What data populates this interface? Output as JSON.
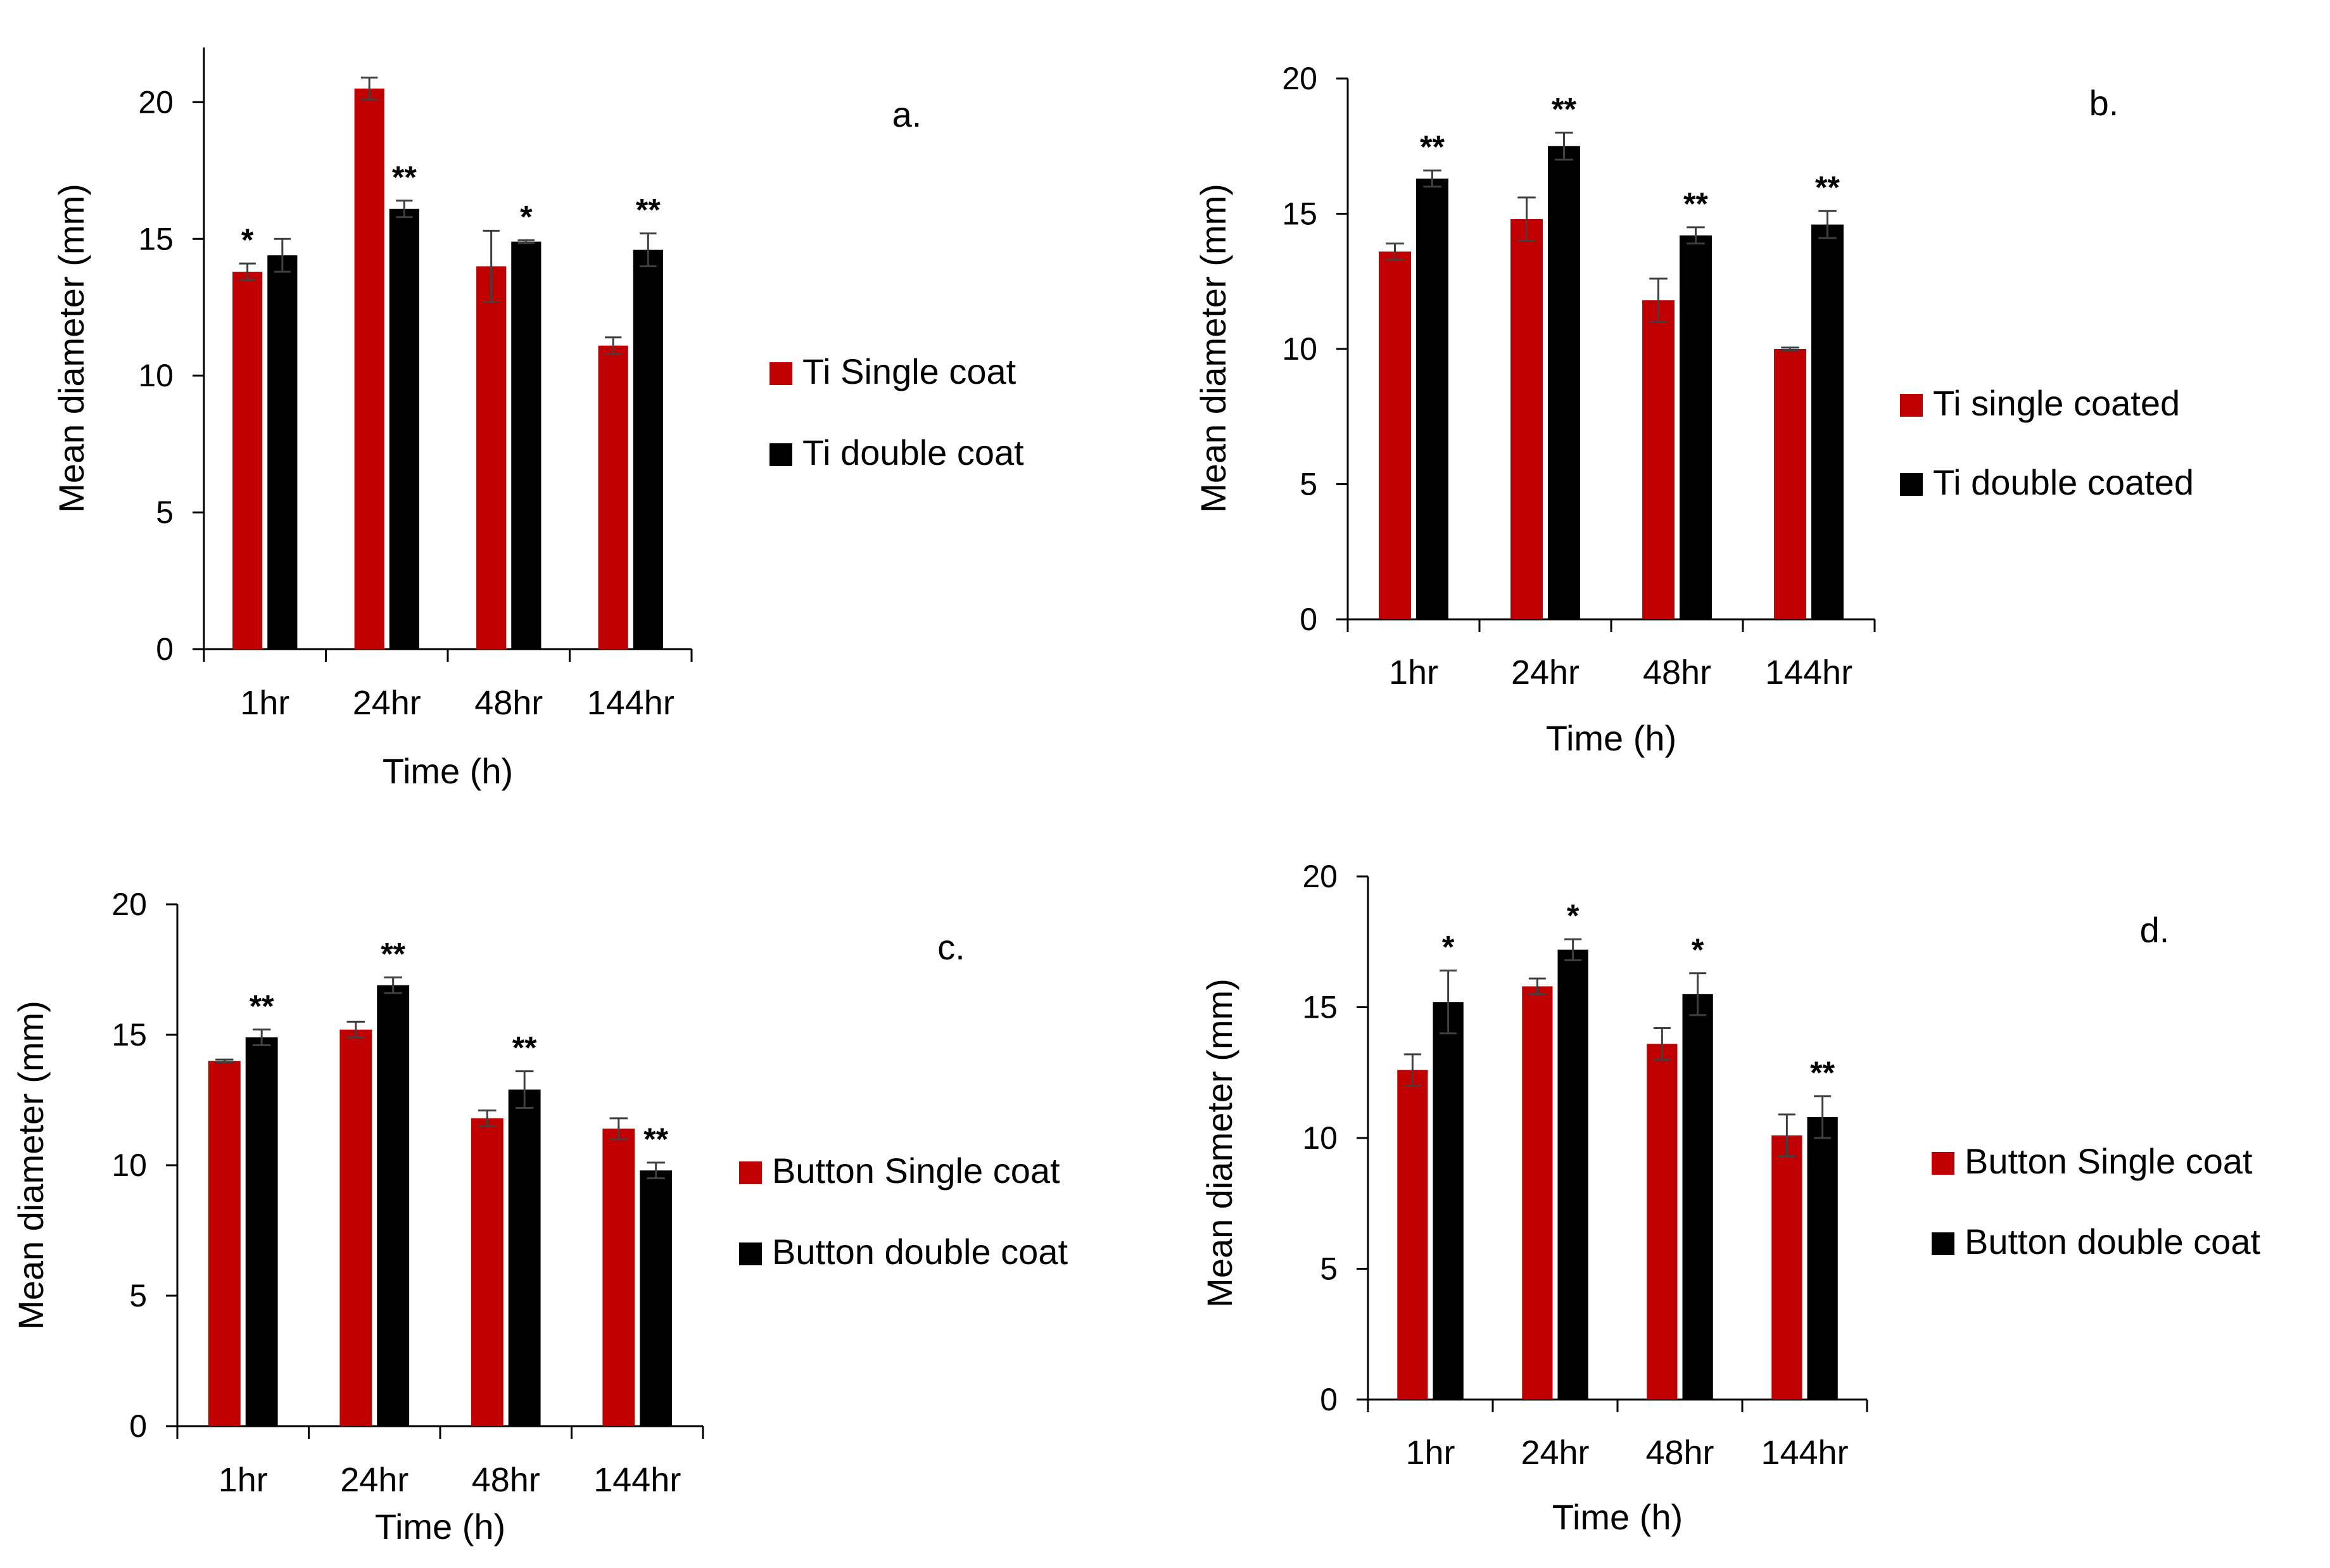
{
  "colors": {
    "single": "#c00000",
    "double": "#000000",
    "axis": "#000000",
    "error": "#404040"
  },
  "chart_data": [
    {
      "type": "bar",
      "panel_label": "a.",
      "xlabel": "Time (h)",
      "ylabel": "Mean diameter  (mm)",
      "ylim": [
        0,
        22
      ],
      "yticks": [
        0,
        5,
        10,
        15,
        20
      ],
      "grid": false,
      "legend_position": "right",
      "categories": [
        "1hr",
        "24hr",
        "48hr",
        "144hr"
      ],
      "series": [
        {
          "name": "Ti Single coat",
          "color": "#c00000",
          "values": [
            13.8,
            20.5,
            14.0,
            11.1
          ],
          "errors": [
            0.3,
            0.4,
            1.3,
            0.3
          ],
          "sig": [
            "*",
            "",
            "",
            ""
          ]
        },
        {
          "name": "Ti double coat",
          "color": "#000000",
          "values": [
            14.4,
            16.1,
            14.9,
            14.6
          ],
          "errors": [
            0.6,
            0.3,
            0.05,
            0.6
          ],
          "sig": [
            "",
            "**",
            "*",
            "**"
          ]
        }
      ]
    },
    {
      "type": "bar",
      "panel_label": "b.",
      "xlabel": "Time (h)",
      "ylabel": "Mean diameter (mm)",
      "ylim": [
        0,
        20
      ],
      "yticks": [
        0,
        5,
        10,
        15,
        20
      ],
      "grid": false,
      "legend_position": "right",
      "categories": [
        "1hr",
        "24hr",
        "48hr",
        "144hr"
      ],
      "series": [
        {
          "name": "Ti single coated",
          "color": "#c00000",
          "values": [
            13.6,
            14.8,
            11.8,
            10.0
          ],
          "errors": [
            0.3,
            0.8,
            0.8,
            0.05
          ],
          "sig": [
            "",
            "",
            "",
            ""
          ]
        },
        {
          "name": "Ti double coated",
          "color": "#000000",
          "values": [
            16.3,
            17.5,
            14.2,
            14.6
          ],
          "errors": [
            0.3,
            0.5,
            0.3,
            0.5
          ],
          "sig": [
            "**",
            "**",
            "**",
            "**"
          ]
        }
      ]
    },
    {
      "type": "bar",
      "panel_label": "c.",
      "xlabel": "Time (h)",
      "ylabel": "Mean diameter (mm)",
      "ylim": [
        0,
        20
      ],
      "yticks": [
        0,
        5,
        10,
        15,
        20
      ],
      "grid": false,
      "legend_position": "right",
      "categories": [
        "1hr",
        "24hr",
        "48hr",
        "144hr"
      ],
      "series": [
        {
          "name": "Button Single coat",
          "color": "#c00000",
          "values": [
            14.0,
            15.2,
            11.8,
            11.4
          ],
          "errors": [
            0.05,
            0.3,
            0.3,
            0.4
          ],
          "sig": [
            "",
            "",
            "",
            ""
          ]
        },
        {
          "name": "Button double coat",
          "color": "#000000",
          "values": [
            14.9,
            16.9,
            12.9,
            9.8
          ],
          "errors": [
            0.3,
            0.3,
            0.7,
            0.3
          ],
          "sig": [
            "**",
            "**",
            "**",
            "**"
          ]
        }
      ]
    },
    {
      "type": "bar",
      "panel_label": "d.",
      "xlabel": "Time (h)",
      "ylabel": "Mean diameter (mm)",
      "ylim": [
        0,
        20
      ],
      "yticks": [
        0,
        5,
        10,
        15,
        20
      ],
      "grid": false,
      "legend_position": "right",
      "categories": [
        "1hr",
        "24hr",
        "48hr",
        "144hr"
      ],
      "series": [
        {
          "name": "Button Single coat",
          "color": "#c00000",
          "values": [
            12.6,
            15.8,
            13.6,
            10.1
          ],
          "errors": [
            0.6,
            0.3,
            0.6,
            0.8
          ],
          "sig": [
            "",
            "",
            "",
            ""
          ]
        },
        {
          "name": "Button double coat",
          "color": "#000000",
          "values": [
            15.2,
            17.2,
            15.5,
            10.8
          ],
          "errors": [
            1.2,
            0.4,
            0.8,
            0.8
          ],
          "sig": [
            "*",
            "*",
            "*",
            "**"
          ]
        }
      ]
    }
  ]
}
